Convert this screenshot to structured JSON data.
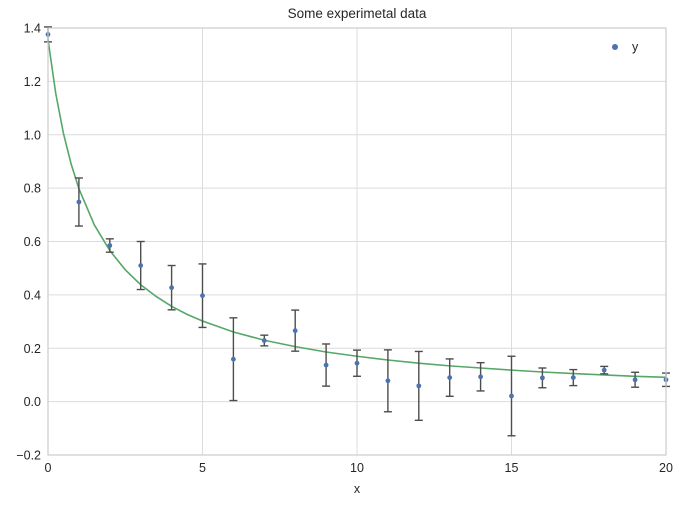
{
  "chart_data": {
    "type": "scatter",
    "title": "Some experimetal data",
    "xlabel": "x",
    "ylabel": "",
    "xlim": [
      0,
      20
    ],
    "ylim": [
      -0.2,
      1.4
    ],
    "grid": true,
    "x_ticks": {
      "values": [
        0,
        5,
        10,
        15,
        20
      ],
      "labels": [
        "0",
        "5",
        "10",
        "15",
        "20"
      ]
    },
    "y_ticks": {
      "values": [
        1.4,
        1.2,
        1.0,
        0.8,
        0.6,
        0.4,
        0.2,
        0.0,
        -0.2
      ],
      "labels": [
        "1.4",
        "1.2",
        "1.0",
        "0.8",
        "0.6",
        "0.4",
        "0.2",
        "0.0",
        "−0.2"
      ]
    },
    "legend": {
      "label": "y",
      "position": "upper right",
      "frame": false
    },
    "series": [
      {
        "name": "y",
        "type": "scatter-errorbar",
        "marker": "point",
        "color": "#4C72B0",
        "error_color": "#4d4d4d",
        "x": [
          0,
          1,
          2,
          3,
          4,
          5,
          6,
          7,
          8,
          9,
          10,
          11,
          12,
          13,
          14,
          15,
          16,
          17,
          18,
          19,
          20
        ],
        "y": [
          1.376,
          0.748,
          0.585,
          0.51,
          0.427,
          0.397,
          0.159,
          0.229,
          0.266,
          0.137,
          0.144,
          0.078,
          0.059,
          0.09,
          0.093,
          0.021,
          0.089,
          0.09,
          0.118,
          0.082,
          0.082
        ],
        "yerr": [
          0.028,
          0.09,
          0.025,
          0.09,
          0.083,
          0.119,
          0.155,
          0.02,
          0.077,
          0.079,
          0.049,
          0.116,
          0.129,
          0.07,
          0.053,
          0.149,
          0.037,
          0.03,
          0.014,
          0.028,
          0.025
        ]
      },
      {
        "name": "fit-curve",
        "type": "line",
        "color": "#55A868",
        "formula": "y = 1.94/(x+1.43)",
        "x": [
          0,
          0.25,
          0.5,
          0.75,
          1,
          1.5,
          2,
          2.5,
          3,
          3.5,
          4,
          4.5,
          5,
          6,
          7,
          8,
          9,
          10,
          11,
          12,
          13,
          14,
          15,
          16,
          17,
          18,
          19,
          20
        ],
        "y": [
          1.357,
          1.155,
          1.005,
          0.89,
          0.798,
          0.662,
          0.566,
          0.494,
          0.438,
          0.394,
          0.357,
          0.327,
          0.302,
          0.261,
          0.23,
          0.206,
          0.186,
          0.17,
          0.156,
          0.144,
          0.134,
          0.126,
          0.118,
          0.111,
          0.105,
          0.1,
          0.095,
          0.091
        ]
      }
    ],
    "colors": {
      "background": "#ffffff",
      "grid": "#dcdcdc",
      "spine": "#cccccc",
      "text": "#262626",
      "marker": "#4C72B0",
      "curve": "#55A868",
      "error_bar": "#4d4d4d"
    }
  }
}
